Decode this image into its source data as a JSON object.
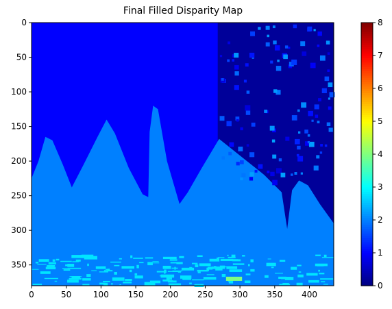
{
  "chart_data": {
    "type": "heatmap",
    "title": "Final Filled Disparity Map",
    "xlabel": "",
    "ylabel": "",
    "x_range": [
      0,
      435
    ],
    "y_range": [
      0,
      380
    ],
    "y_inverted": true,
    "x_ticks": [
      0,
      50,
      100,
      150,
      200,
      250,
      300,
      350,
      400
    ],
    "y_ticks": [
      0,
      50,
      100,
      150,
      200,
      250,
      300,
      350
    ],
    "colormap": "jet",
    "colorbar": {
      "min": 0,
      "max": 8,
      "ticks": [
        0,
        1,
        2,
        3,
        4,
        5,
        6,
        7,
        8
      ]
    },
    "regions": [
      {
        "name": "background",
        "approx_value": 1.0
      },
      {
        "name": "upper-right dark region",
        "approx_value": 0.2
      },
      {
        "name": "lower mountain region",
        "approx_value": 2.0
      },
      {
        "name": "bottom noisy band",
        "approx_value": 2.8
      },
      {
        "name": "highlight spot near x=290,y=370",
        "approx_value": 4.0
      }
    ],
    "mountain_profile": [
      [
        0,
        225
      ],
      [
        10,
        200
      ],
      [
        20,
        165
      ],
      [
        30,
        170
      ],
      [
        45,
        205
      ],
      [
        58,
        238
      ],
      [
        75,
        205
      ],
      [
        95,
        165
      ],
      [
        108,
        140
      ],
      [
        120,
        160
      ],
      [
        140,
        210
      ],
      [
        160,
        248
      ],
      [
        168,
        252
      ],
      [
        170,
        158
      ],
      [
        175,
        120
      ],
      [
        182,
        125
      ],
      [
        195,
        200
      ],
      [
        213,
        262
      ],
      [
        225,
        245
      ],
      [
        245,
        210
      ],
      [
        270,
        168
      ],
      [
        285,
        180
      ],
      [
        310,
        200
      ],
      [
        335,
        220
      ],
      [
        360,
        245
      ],
      [
        368,
        298
      ],
      [
        375,
        242
      ],
      [
        385,
        228
      ],
      [
        398,
        235
      ],
      [
        415,
        262
      ],
      [
        435,
        290
      ]
    ],
    "gridlines": false
  }
}
